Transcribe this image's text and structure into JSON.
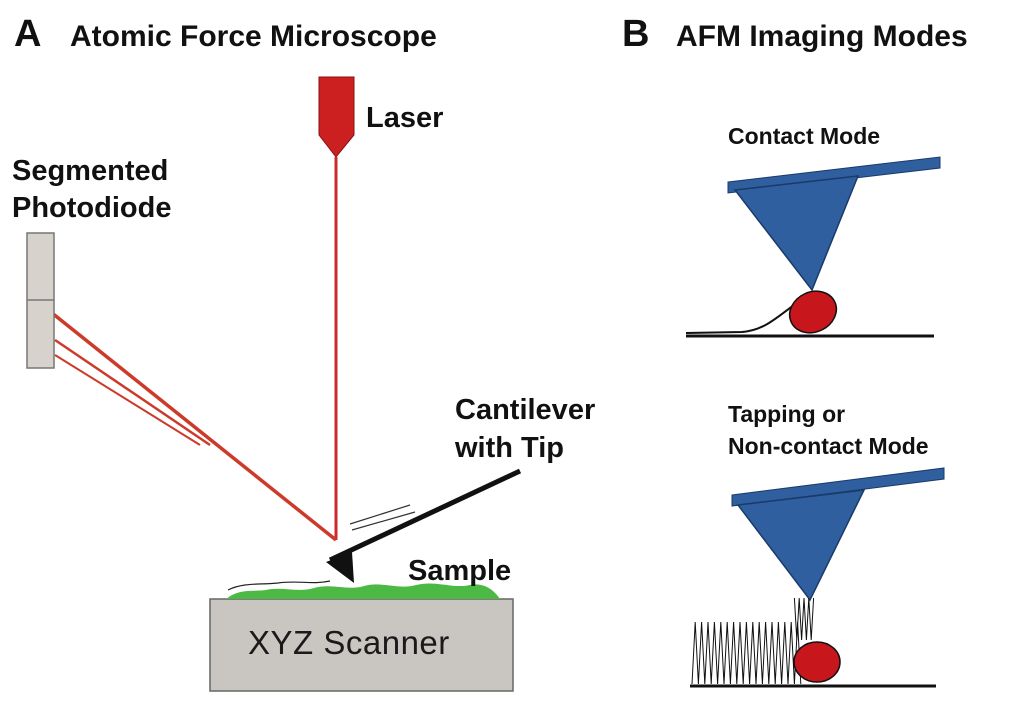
{
  "panel_a": {
    "letter": "A",
    "title": "Atomic Force Microscope",
    "labels": {
      "laser": "Laser",
      "photodiode_line1": "Segmented",
      "photodiode_line2": "Photodiode",
      "cantilever_line1": "Cantilever",
      "cantilever_line2": "with Tip",
      "sample": "Sample",
      "scanner": "XYZ Scanner"
    }
  },
  "panel_b": {
    "letter": "B",
    "title": "AFM Imaging Modes",
    "contact_mode": "Contact Mode",
    "tapping_line1": "Tapping or",
    "tapping_line2": "Non-contact Mode"
  },
  "colors": {
    "laser_red": "#cc1f1f",
    "tip_blue": "#2f5f9e",
    "sample_green": "#4cb944",
    "scanner_gray": "#c9c5c1",
    "particle_red": "#c8161d"
  }
}
